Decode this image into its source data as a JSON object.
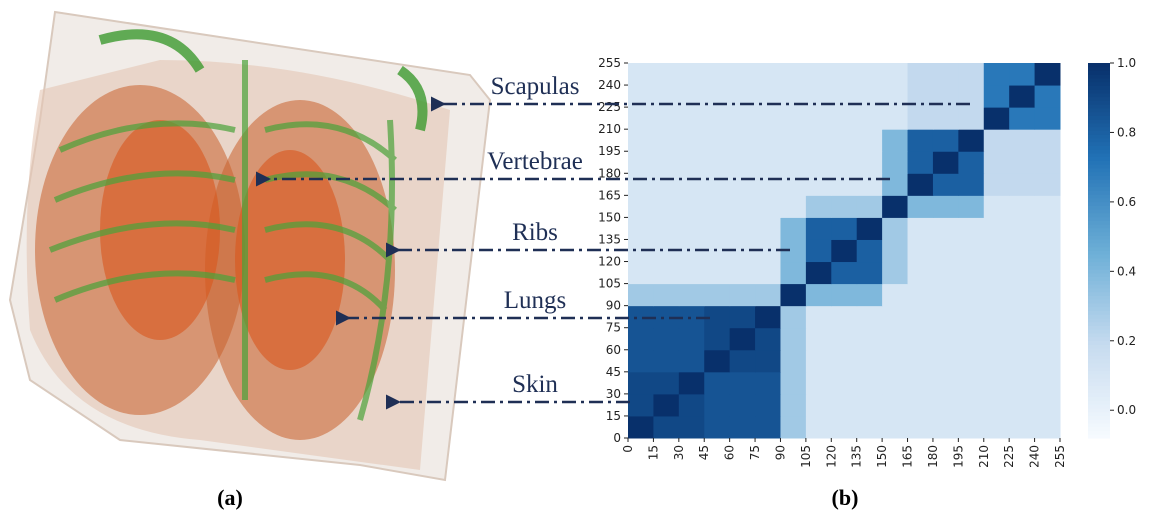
{
  "chart_data": {
    "type": "heatmap",
    "panel_labels": [
      "(a)",
      "(b)"
    ],
    "annotations": [
      "Scapulas",
      "Vertebrae",
      "Ribs",
      "Lungs",
      "Skin"
    ],
    "xlim": [
      0,
      255
    ],
    "ylim": [
      0,
      255
    ],
    "xticks": [
      0,
      15,
      30,
      45,
      60,
      75,
      90,
      105,
      120,
      135,
      150,
      165,
      180,
      195,
      210,
      225,
      240,
      255
    ],
    "yticks": [
      0,
      15,
      30,
      45,
      60,
      75,
      90,
      105,
      120,
      135,
      150,
      165,
      180,
      195,
      210,
      225,
      240,
      255
    ],
    "zlim": [
      -0.08,
      1.0
    ],
    "zticks": [
      {
        "value": 0,
        "label": "0.0"
      },
      {
        "value": 0.2,
        "label": "0.2"
      },
      {
        "value": 0.4,
        "label": "0.4"
      },
      {
        "value": 0.6,
        "label": "0.6"
      },
      {
        "value": 0.8,
        "label": "0.8"
      },
      {
        "value": 1,
        "label": "1.0"
      }
    ],
    "colormap": [
      "#f7fbff",
      "#c6dbef",
      "#6baed6",
      "#2171b5",
      "#08306b"
    ],
    "matrix": [
      [
        1,
        0.9,
        0.9,
        0.85,
        0.85,
        0.85,
        0.3,
        0.1,
        0.1,
        0.1,
        0.1,
        0.1,
        0.1,
        0.1,
        0.1,
        0.1,
        0.1
      ],
      [
        0.9,
        1,
        0.9,
        0.85,
        0.85,
        0.85,
        0.3,
        0.1,
        0.1,
        0.1,
        0.1,
        0.1,
        0.1,
        0.1,
        0.1,
        0.1,
        0.1
      ],
      [
        0.9,
        0.9,
        1,
        0.85,
        0.85,
        0.85,
        0.3,
        0.1,
        0.1,
        0.1,
        0.1,
        0.1,
        0.1,
        0.1,
        0.1,
        0.1,
        0.1
      ],
      [
        0.85,
        0.85,
        0.85,
        1,
        0.9,
        0.9,
        0.3,
        0.1,
        0.1,
        0.1,
        0.1,
        0.1,
        0.1,
        0.1,
        0.1,
        0.1,
        0.1
      ],
      [
        0.85,
        0.85,
        0.85,
        0.9,
        1,
        0.9,
        0.3,
        0.1,
        0.1,
        0.1,
        0.1,
        0.1,
        0.1,
        0.1,
        0.1,
        0.1,
        0.1
      ],
      [
        0.85,
        0.85,
        0.85,
        0.9,
        0.9,
        1,
        0.3,
        0.1,
        0.1,
        0.1,
        0.1,
        0.1,
        0.1,
        0.1,
        0.1,
        0.1,
        0.1
      ],
      [
        0.3,
        0.3,
        0.3,
        0.3,
        0.3,
        0.3,
        1,
        0.4,
        0.4,
        0.4,
        0.1,
        0.1,
        0.1,
        0.1,
        0.1,
        0.1,
        0.1
      ],
      [
        0.1,
        0.1,
        0.1,
        0.1,
        0.1,
        0.1,
        0.4,
        1,
        0.8,
        0.8,
        0.3,
        0.1,
        0.1,
        0.1,
        0.1,
        0.1,
        0.1
      ],
      [
        0.1,
        0.1,
        0.1,
        0.1,
        0.1,
        0.1,
        0.4,
        0.8,
        1,
        0.8,
        0.3,
        0.1,
        0.1,
        0.1,
        0.1,
        0.1,
        0.1
      ],
      [
        0.1,
        0.1,
        0.1,
        0.1,
        0.1,
        0.1,
        0.4,
        0.8,
        0.8,
        1,
        0.3,
        0.1,
        0.1,
        0.1,
        0.1,
        0.1,
        0.1
      ],
      [
        0.1,
        0.1,
        0.1,
        0.1,
        0.1,
        0.1,
        0.1,
        0.3,
        0.3,
        0.3,
        1,
        0.4,
        0.4,
        0.4,
        0.1,
        0.1,
        0.1
      ],
      [
        0.1,
        0.1,
        0.1,
        0.1,
        0.1,
        0.1,
        0.1,
        0.1,
        0.1,
        0.1,
        0.4,
        1,
        0.8,
        0.8,
        0.2,
        0.2,
        0.2
      ],
      [
        0.1,
        0.1,
        0.1,
        0.1,
        0.1,
        0.1,
        0.1,
        0.1,
        0.1,
        0.1,
        0.4,
        0.8,
        1,
        0.8,
        0.2,
        0.2,
        0.2
      ],
      [
        0.1,
        0.1,
        0.1,
        0.1,
        0.1,
        0.1,
        0.1,
        0.1,
        0.1,
        0.1,
        0.4,
        0.8,
        0.8,
        1,
        0.2,
        0.2,
        0.2
      ],
      [
        0.1,
        0.1,
        0.1,
        0.1,
        0.1,
        0.1,
        0.1,
        0.1,
        0.1,
        0.1,
        0.1,
        0.2,
        0.2,
        0.2,
        1,
        0.7,
        0.7
      ],
      [
        0.1,
        0.1,
        0.1,
        0.1,
        0.1,
        0.1,
        0.1,
        0.1,
        0.1,
        0.1,
        0.1,
        0.2,
        0.2,
        0.2,
        0.7,
        1,
        0.7
      ],
      [
        0.1,
        0.1,
        0.1,
        0.1,
        0.1,
        0.1,
        0.1,
        0.1,
        0.1,
        0.1,
        0.1,
        0.2,
        0.2,
        0.2,
        0.7,
        0.7,
        1
      ]
    ]
  }
}
